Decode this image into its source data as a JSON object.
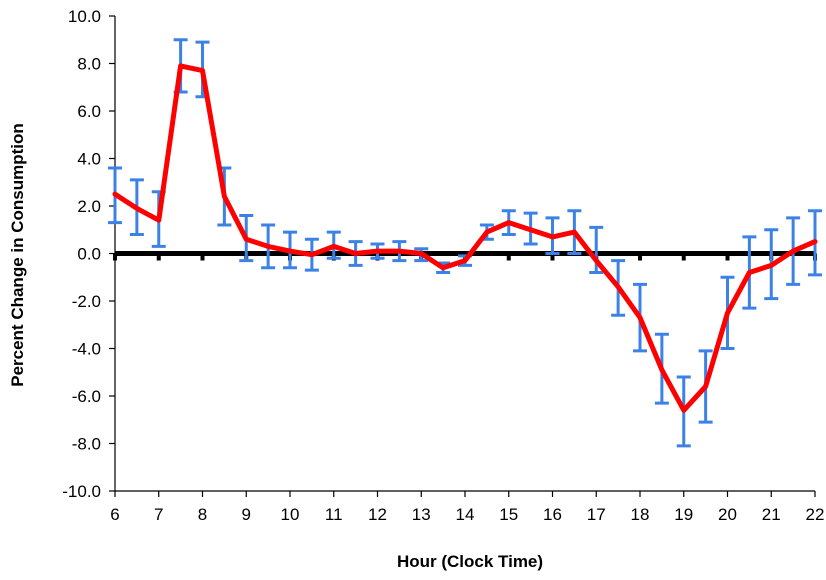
{
  "chart_data": {
    "type": "line",
    "xlabel": "Hour (Clock Time)",
    "ylabel": "Percent Change in Consumption",
    "xlim": [
      6,
      22
    ],
    "ylim": [
      -10,
      10
    ],
    "x_ticks": [
      6,
      7,
      8,
      9,
      10,
      11,
      12,
      13,
      14,
      15,
      16,
      17,
      18,
      19,
      20,
      21,
      22
    ],
    "x_tick_labels": [
      "6",
      "7",
      "8",
      "9",
      "10",
      "11",
      "12",
      "13",
      "14",
      "15",
      "16",
      "17",
      "18",
      "19",
      "20",
      "21",
      "22"
    ],
    "y_ticks": [
      -10,
      -8,
      -6,
      -4,
      -2,
      0,
      2,
      4,
      6,
      8,
      10
    ],
    "y_tick_labels": [
      "-10.0",
      "-8.0",
      "-6.0",
      "-4.0",
      "-2.0",
      "0.0",
      "2.0",
      "4.0",
      "6.0",
      "8.0",
      "10.0"
    ],
    "grid": false,
    "series": [
      {
        "x": [
          6,
          6.5,
          7,
          7.5,
          8,
          8.5,
          9,
          9.5,
          10,
          10.5,
          11,
          11.5,
          12,
          12.5,
          13,
          13.5,
          14,
          14.5,
          15,
          15.5,
          16,
          16.5,
          17,
          17.5,
          18,
          18.5,
          19,
          19.5,
          20,
          20.5,
          21,
          21.5,
          22
        ],
        "values": [
          2.5,
          1.9,
          1.4,
          7.9,
          7.7,
          2.4,
          0.6,
          0.3,
          0.1,
          -0.05,
          0.3,
          0.0,
          0.1,
          0.1,
          0.0,
          -0.6,
          -0.3,
          0.9,
          1.3,
          1.0,
          0.7,
          0.9,
          -0.3,
          -1.4,
          -2.7,
          -4.9,
          -6.6,
          -5.6,
          -2.5,
          -0.8,
          -0.5,
          0.1,
          0.5
        ],
        "error_low": [
          1.3,
          0.8,
          0.3,
          6.8,
          6.6,
          1.2,
          -0.3,
          -0.6,
          -0.6,
          -0.7,
          -0.2,
          -0.5,
          -0.2,
          -0.3,
          -0.3,
          -0.8,
          -0.5,
          0.6,
          0.8,
          0.4,
          0.0,
          0.0,
          -0.8,
          -2.6,
          -4.1,
          -6.3,
          -8.1,
          -7.1,
          -4.0,
          -2.3,
          -1.9,
          -1.3,
          -0.9
        ],
        "error_high": [
          3.6,
          3.1,
          2.6,
          9.0,
          8.9,
          3.6,
          1.6,
          1.2,
          0.9,
          0.6,
          0.9,
          0.5,
          0.4,
          0.5,
          0.2,
          -0.4,
          -0.1,
          1.2,
          1.8,
          1.7,
          1.5,
          1.8,
          1.1,
          -0.3,
          -1.3,
          -3.4,
          -5.2,
          -4.1,
          -1.0,
          0.7,
          1.0,
          1.5,
          1.8
        ],
        "color": "#ff0000",
        "error_color": "#3c82e6"
      }
    ],
    "zero_line_color": "#000000"
  }
}
